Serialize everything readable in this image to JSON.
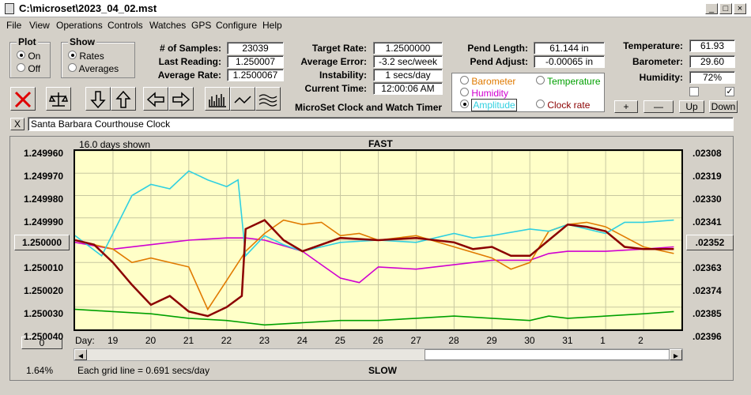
{
  "window": {
    "title": "C:\\microset\\2023_04_02.mst"
  },
  "menu": [
    "File",
    "View",
    "Operations",
    "Controls",
    "Watches",
    "GPS",
    "Configure",
    "Help"
  ],
  "plot_group": {
    "caption": "Plot",
    "on": "On",
    "off": "Off",
    "selected": "On"
  },
  "show_group": {
    "caption": "Show",
    "rates": "Rates",
    "averages": "Averages",
    "selected": "Rates"
  },
  "stats": {
    "samples_label": "# of Samples:",
    "samples": "23039",
    "last_label": "Last Reading:",
    "last": "1.250007",
    "avg_label": "Average Rate:",
    "avg": "1.2500067",
    "target_label": "Target Rate:",
    "target": "1.2500000",
    "avgerr_label": "Average Error:",
    "avgerr": "-3.2 sec/week",
    "instab_label": "Instability:",
    "instab": "1 secs/day",
    "time_label": "Current Time:",
    "time": "12:00:06 AM",
    "pendlen_label": "Pend Length:",
    "pendlen": "61.144 in",
    "pendadj_label": "Pend Adjust:",
    "pendadj": "-0.00065 in",
    "temp_label": "Temperature:",
    "temp": "61.93",
    "baro_label": "Barometer:",
    "baro": "29.60",
    "hum_label": "Humidity:",
    "hum": "72%"
  },
  "subtitle": "MicroSet Clock and Watch Timer",
  "channels": {
    "barometer": "Barometer",
    "temperature": "Temperature",
    "humidity": "Humidity",
    "amplitude": "Amplitude",
    "clockrate": "Clock rate",
    "selected": "Amplitude",
    "colors": {
      "barometer": "#e07a00",
      "temperature": "#00a000",
      "humidity": "#d000d0",
      "amplitude": "#30d0e0",
      "clockrate": "#8b0000"
    }
  },
  "side_buttons": {
    "plus": "+",
    "minus": "—",
    "up": "Up",
    "down": "Down",
    "check1": false,
    "check2": true
  },
  "toolbar_close": "X",
  "clock_name": "Santa Barbara Courthouse Clock",
  "graph": {
    "days_shown": "16.0 days shown",
    "fast": "FAST",
    "slow": "SLOW",
    "left_button": "1.250000",
    "right_button": ".02352",
    "zero_button": "0",
    "percent": "1.64%",
    "gridline": "Each grid line = 0.691 secs/day",
    "day_label": "Day:"
  },
  "chart_data": {
    "type": "line",
    "y_left_ticks": [
      "1.249960",
      "1.249970",
      "1.249980",
      "1.249990",
      "1.250000",
      "1.250010",
      "1.250020",
      "1.250030",
      "1.250040"
    ],
    "y_right_ticks": [
      ".02308",
      ".02319",
      ".02330",
      ".02341",
      ".02352",
      ".02363",
      ".02374",
      ".02385",
      ".02396"
    ],
    "x_ticks": [
      "19",
      "20",
      "21",
      "22",
      "23",
      "24",
      "25",
      "26",
      "27",
      "28",
      "29",
      "30",
      "31",
      "1",
      "2"
    ],
    "x_range": [
      18.0,
      34.0
    ],
    "y_range": [
      1.24996,
      1.25004
    ],
    "grid": true,
    "series": [
      {
        "name": "Temperature",
        "color": "#00a000",
        "x": [
          18,
          19,
          20,
          21,
          22,
          22.5,
          23,
          24,
          25,
          26,
          27,
          28,
          29,
          30,
          30.5,
          31,
          32,
          33,
          33.8
        ],
        "y": [
          1.250031,
          1.250032,
          1.250033,
          1.250035,
          1.250036,
          1.250037,
          1.250038,
          1.250037,
          1.250036,
          1.250036,
          1.250035,
          1.250034,
          1.250035,
          1.250036,
          1.250034,
          1.250035,
          1.250034,
          1.250033,
          1.250032
        ]
      },
      {
        "name": "Humidity",
        "color": "#d000d0",
        "x": [
          18,
          19,
          20,
          21,
          22,
          22.5,
          23,
          24,
          24.5,
          25,
          25.5,
          26,
          27,
          28,
          29,
          30,
          30.5,
          31,
          32,
          33,
          33.8
        ],
        "y": [
          1.250001,
          1.250004,
          1.250002,
          1.25,
          1.249999,
          1.249999,
          1.25,
          1.250005,
          1.250011,
          1.250017,
          1.250019,
          1.250012,
          1.250013,
          1.250011,
          1.250009,
          1.250009,
          1.250006,
          1.250005,
          1.250005,
          1.250004,
          1.250003
        ]
      },
      {
        "name": "Barometer",
        "color": "#e07a00",
        "x": [
          18,
          19,
          19.5,
          20,
          21,
          21.5,
          22,
          22.5,
          23,
          23.5,
          24,
          24.5,
          25,
          25.5,
          26,
          27,
          28,
          29,
          29.5,
          30,
          30.5,
          31,
          31.5,
          32,
          33,
          33.8
        ],
        "y": [
          1.25,
          1.250004,
          1.25001,
          1.250008,
          1.250012,
          1.250031,
          1.250018,
          1.250005,
          1.249997,
          1.249991,
          1.249993,
          1.249992,
          1.249998,
          1.249997,
          1.25,
          1.249998,
          1.250003,
          1.250008,
          1.250013,
          1.25001,
          1.249996,
          1.249993,
          1.249992,
          1.249994,
          1.250003,
          1.250006
        ]
      },
      {
        "name": "Amplitude",
        "color": "#30d0e0",
        "x": [
          18,
          18.7,
          19,
          19.5,
          20,
          20.5,
          21,
          21.5,
          22,
          22.3,
          22.5,
          23,
          23.5,
          24,
          25,
          26,
          27,
          28,
          28.5,
          29,
          30,
          30.5,
          31,
          32,
          32.5,
          33,
          33.8
        ],
        "y": [
          1.249998,
          1.250007,
          1.249997,
          1.24998,
          1.249975,
          1.249977,
          1.249969,
          1.249973,
          1.249976,
          1.249973,
          1.250007,
          1.249998,
          1.250002,
          1.250005,
          1.250001,
          1.25,
          1.250001,
          1.249997,
          1.249999,
          1.249998,
          1.249995,
          1.249996,
          1.249993,
          1.249997,
          1.249992,
          1.249992,
          1.249991
        ]
      },
      {
        "name": "Clock rate",
        "color": "#8b0000",
        "x": [
          18,
          18.5,
          19,
          19.5,
          20,
          20.5,
          21,
          21.5,
          22,
          22.4,
          22.5,
          23,
          23.5,
          24,
          25,
          26,
          27,
          28,
          28.5,
          29,
          29.5,
          30,
          30.5,
          31,
          31.5,
          32,
          32.5,
          33,
          33.8
        ],
        "y": [
          1.25,
          1.250002,
          1.25001,
          1.25002,
          1.250029,
          1.250025,
          1.250032,
          1.250034,
          1.25003,
          1.250025,
          1.249995,
          1.249991,
          1.25,
          1.250005,
          1.249999,
          1.25,
          1.249999,
          1.250001,
          1.250004,
          1.250003,
          1.250007,
          1.250007,
          1.25,
          1.249993,
          1.249994,
          1.249996,
          1.250003,
          1.250004,
          1.250004
        ]
      }
    ]
  }
}
